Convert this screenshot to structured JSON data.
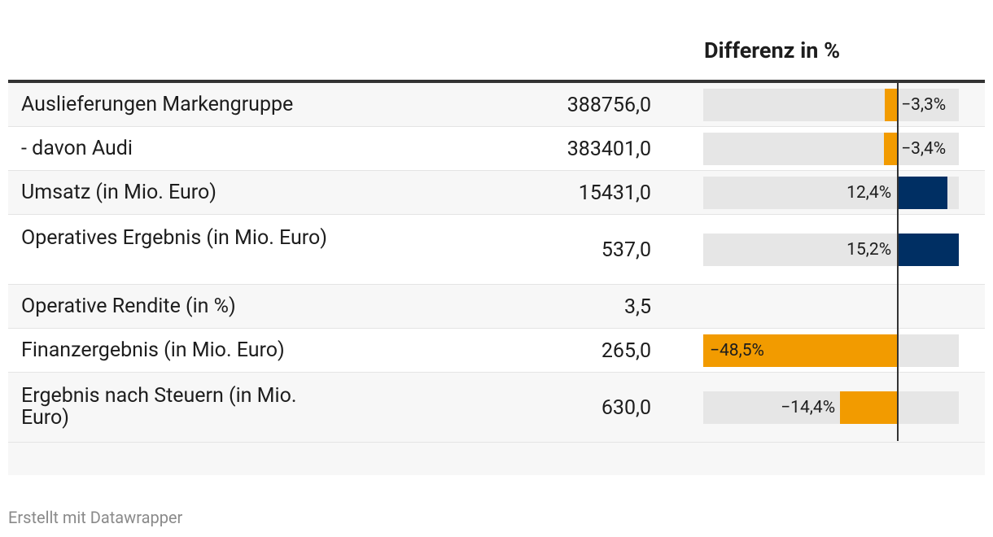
{
  "table": {
    "diff_header": "Differenz in %",
    "credit": "Erstellt mit Datawrapper"
  },
  "colors": {
    "negative": "#f29b00",
    "positive": "#002f63",
    "track": "#e6e6e6",
    "zero_line": "#333333"
  },
  "chart_data": {
    "type": "table",
    "title": "",
    "columns": [
      "",
      "",
      "Differenz in %"
    ],
    "diff_range": [
      -48.5,
      15.2
    ],
    "rows": [
      {
        "label": "Auslieferungen Markengruppe",
        "value": "388756,0",
        "diff": -3.3,
        "diff_label": "−3,3%"
      },
      {
        "label": "- davon Audi",
        "value": "383401,0",
        "diff": -3.4,
        "diff_label": "−3,4%"
      },
      {
        "label": "Umsatz (in Mio. Euro)",
        "value": "15431,0",
        "diff": 12.4,
        "diff_label": "12,4%"
      },
      {
        "label": "Operatives Ergebnis (in Mio. Euro)",
        "value": "537,0",
        "diff": 15.2,
        "diff_label": "15,2%"
      },
      {
        "label": "Operative Rendite (in %)",
        "value": "3,5",
        "diff": null,
        "diff_label": ""
      },
      {
        "label": "Finanzergebnis (in Mio. Euro)",
        "value": "265,0",
        "diff": -48.5,
        "diff_label": "−48,5%"
      },
      {
        "label": "Ergebnis nach Steuern (in Mio. Euro)",
        "value": "630,0",
        "diff": -14.4,
        "diff_label": "−14,4%"
      }
    ]
  }
}
